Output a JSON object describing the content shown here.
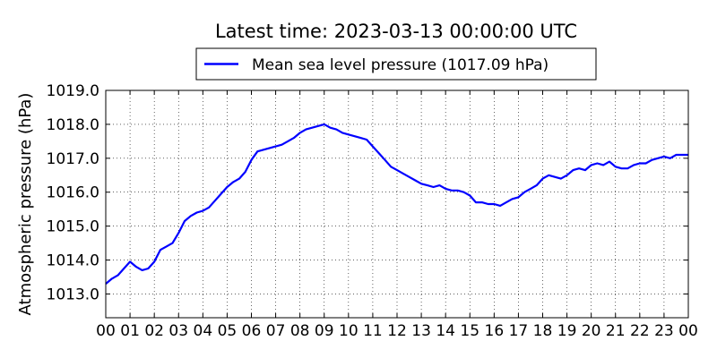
{
  "chart_data": {
    "type": "line",
    "title": "Latest time: 2023-03-13 00:00:00 UTC",
    "ylabel": "Atmospheric pressure (hPa)",
    "xlabel": "",
    "x_unit": "hour",
    "xlim": [
      0,
      24
    ],
    "ylim": [
      1012.3,
      1019.0
    ],
    "x_ticks": [
      0,
      1,
      2,
      3,
      4,
      5,
      6,
      7,
      8,
      9,
      10,
      11,
      12,
      13,
      14,
      15,
      16,
      17,
      18,
      19,
      20,
      21,
      22,
      23,
      24
    ],
    "x_tick_labels": [
      "00",
      "01",
      "02",
      "03",
      "04",
      "05",
      "06",
      "07",
      "08",
      "09",
      "10",
      "11",
      "12",
      "13",
      "14",
      "15",
      "16",
      "17",
      "18",
      "19",
      "20",
      "21",
      "22",
      "23",
      "00"
    ],
    "y_ticks": [
      1013.0,
      1014.0,
      1015.0,
      1016.0,
      1017.0,
      1018.0,
      1019.0
    ],
    "y_tick_labels": [
      "1013.0",
      "1014.0",
      "1015.0",
      "1016.0",
      "1017.0",
      "1018.0",
      "1019.0"
    ],
    "grid": true,
    "legend_position": "top-center",
    "series": [
      {
        "name": "Mean sea level pressure (1017.09 hPa)",
        "color": "#0000ff",
        "x": [
          0,
          0.25,
          0.5,
          0.75,
          1.0,
          1.25,
          1.5,
          1.75,
          2.0,
          2.25,
          2.5,
          2.75,
          3.0,
          3.25,
          3.5,
          3.75,
          4.0,
          4.25,
          4.5,
          4.75,
          5.0,
          5.25,
          5.5,
          5.75,
          6.0,
          6.25,
          6.5,
          6.75,
          7.0,
          7.25,
          7.5,
          7.75,
          8.0,
          8.25,
          8.5,
          8.75,
          9.0,
          9.25,
          9.5,
          9.75,
          10.0,
          10.25,
          10.5,
          10.75,
          11.0,
          11.25,
          11.5,
          11.75,
          12.0,
          12.25,
          12.5,
          12.75,
          13.0,
          13.25,
          13.5,
          13.75,
          14.0,
          14.25,
          14.5,
          14.75,
          15.0,
          15.25,
          15.5,
          15.75,
          16.0,
          16.25,
          16.5,
          16.75,
          17.0,
          17.25,
          17.5,
          17.75,
          18.0,
          18.25,
          18.5,
          18.75,
          19.0,
          19.25,
          19.5,
          19.75,
          20.0,
          20.25,
          20.5,
          20.75,
          21.0,
          21.25,
          21.5,
          21.75,
          22.0,
          22.25,
          22.5,
          22.75,
          23.0,
          23.25,
          23.5,
          23.75,
          24.0
        ],
        "y": [
          1013.3,
          1013.45,
          1013.55,
          1013.75,
          1013.95,
          1013.8,
          1013.7,
          1013.75,
          1013.95,
          1014.3,
          1014.4,
          1014.5,
          1014.8,
          1015.15,
          1015.3,
          1015.4,
          1015.45,
          1015.55,
          1015.75,
          1015.95,
          1016.15,
          1016.3,
          1016.4,
          1016.6,
          1016.95,
          1017.2,
          1017.25,
          1017.3,
          1017.35,
          1017.4,
          1017.5,
          1017.6,
          1017.75,
          1017.85,
          1017.9,
          1017.95,
          1018.0,
          1017.9,
          1017.85,
          1017.75,
          1017.7,
          1017.65,
          1017.6,
          1017.55,
          1017.35,
          1017.15,
          1016.95,
          1016.75,
          1016.65,
          1016.55,
          1016.45,
          1016.35,
          1016.25,
          1016.2,
          1016.15,
          1016.2,
          1016.1,
          1016.05,
          1016.05,
          1016.0,
          1015.9,
          1015.7,
          1015.7,
          1015.65,
          1015.65,
          1015.6,
          1015.7,
          1015.8,
          1015.85,
          1016.0,
          1016.1,
          1016.2,
          1016.4,
          1016.5,
          1016.45,
          1016.4,
          1016.5,
          1016.65,
          1016.7,
          1016.65,
          1016.8,
          1016.85,
          1016.8,
          1016.9,
          1016.75,
          1016.7,
          1016.7,
          1016.8,
          1016.85,
          1016.85,
          1016.95,
          1017.0,
          1017.05,
          1017.0,
          1017.1,
          1017.1,
          1017.1
        ]
      }
    ]
  }
}
